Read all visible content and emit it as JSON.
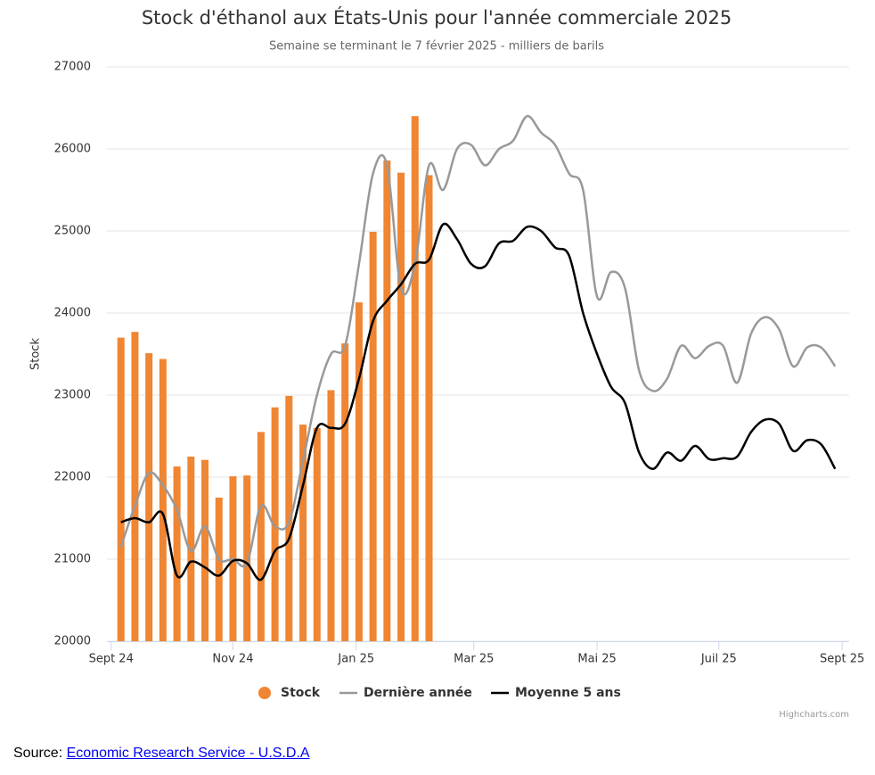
{
  "chart_data": {
    "type": "combo",
    "title": "Stock d'éthanol aux États-Unis pour l'année commerciale 2025",
    "subtitle": "Semaine se terminant le 7 février 2025 - milliers de barils",
    "y_label": "Stock",
    "credit": "Highcharts.com",
    "source_prefix": "Source:",
    "source_link": "Economic Research Service - U.S.D.A",
    "x": [
      0,
      1,
      2,
      3,
      4,
      5,
      6,
      7,
      8,
      9,
      10,
      11,
      12,
      13,
      14,
      15,
      16,
      17,
      18,
      19,
      20,
      21,
      22,
      23,
      24,
      25,
      26,
      27,
      28,
      29,
      30,
      31,
      32,
      33,
      34,
      35,
      36,
      37,
      38,
      39,
      40,
      41,
      42,
      43,
      44,
      45,
      46,
      47,
      48,
      49,
      50,
      51
    ],
    "xlim": [
      -1,
      52
    ],
    "xticks": [
      {
        "value": -0.7,
        "label": "Sept 24"
      },
      {
        "value": 8.0,
        "label": "Nov 24"
      },
      {
        "value": 16.8,
        "label": "Jan 25"
      },
      {
        "value": 25.2,
        "label": "Mar 25"
      },
      {
        "value": 34.0,
        "label": "Mai 25"
      },
      {
        "value": 42.7,
        "label": "Juil 25"
      },
      {
        "value": 51.5,
        "label": "Sept 25"
      }
    ],
    "ylim": [
      20000,
      27000
    ],
    "yticks": [
      20000,
      21000,
      22000,
      23000,
      24000,
      25000,
      26000,
      27000
    ],
    "grid": true,
    "legend": "bottom",
    "series": [
      {
        "name": "Stock",
        "type": "bar",
        "color": "#f08532",
        "values": [
          23700,
          23770,
          23510,
          23440,
          22130,
          22250,
          22210,
          21750,
          22010,
          22020,
          22550,
          22850,
          22990,
          22640,
          22600,
          23060,
          23630,
          24130,
          24990,
          25860,
          25710,
          26400,
          25680,
          null,
          null,
          null,
          null,
          null,
          null,
          null,
          null,
          null,
          null,
          null,
          null,
          null,
          null,
          null,
          null,
          null,
          null,
          null,
          null,
          null,
          null,
          null,
          null,
          null,
          null,
          null,
          null,
          null
        ]
      },
      {
        "name": "Dernière année",
        "type": "line",
        "color": "#999999",
        "values": [
          21150,
          21650,
          22050,
          21900,
          21600,
          21100,
          21400,
          21000,
          21000,
          20950,
          21650,
          21400,
          21450,
          22200,
          23000,
          23500,
          23600,
          24600,
          25700,
          25800,
          24300,
          24600,
          25800,
          25500,
          26000,
          26050,
          25800,
          26000,
          26100,
          26400,
          26200,
          26050,
          25700,
          25500,
          24200,
          24500,
          24300,
          23300,
          23050,
          23200,
          23600,
          23450,
          23600,
          23600,
          23150,
          23750,
          23950,
          23800,
          23350,
          23580,
          23580,
          23350
        ]
      },
      {
        "name": "Moyenne 5 ans",
        "type": "line",
        "color": "#000000",
        "values": [
          21450,
          21500,
          21450,
          21550,
          20800,
          20970,
          20900,
          20800,
          20980,
          20950,
          20750,
          21100,
          21250,
          21900,
          22600,
          22600,
          22650,
          23200,
          23900,
          24150,
          24350,
          24600,
          24650,
          25080,
          24900,
          24600,
          24570,
          24850,
          24880,
          25050,
          25000,
          24800,
          24700,
          24000,
          23500,
          23100,
          22900,
          22300,
          22100,
          22300,
          22200,
          22380,
          22220,
          22230,
          22250,
          22550,
          22700,
          22650,
          22320,
          22450,
          22400,
          22100
        ]
      }
    ]
  }
}
